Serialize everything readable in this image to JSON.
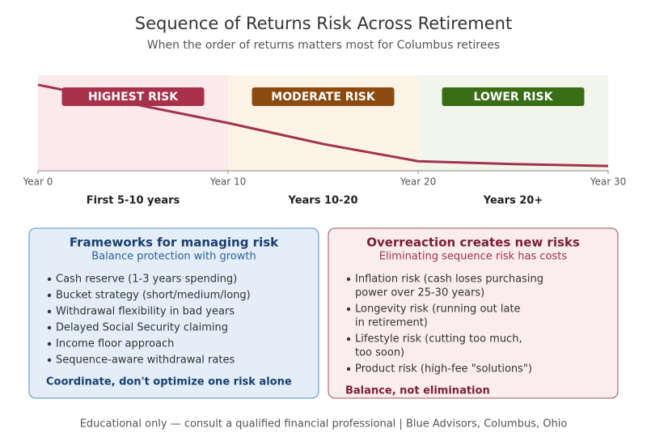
{
  "chart_data": {
    "type": "line",
    "title": "Sequence of Returns Risk Across Retirement",
    "subtitle": "When the order of returns matters most for Columbus retirees",
    "x": [
      0,
      5,
      10,
      15,
      20,
      25,
      30
    ],
    "values": [
      90,
      70,
      50,
      28,
      10,
      7,
      5
    ],
    "color": "#a0334d",
    "xlim": [
      0,
      30
    ],
    "ylim": [
      0,
      100
    ],
    "xticks": [
      {
        "value": 0,
        "label": "Year 0"
      },
      {
        "value": 10,
        "label": "Year 10"
      },
      {
        "value": 20,
        "label": "Year 20"
      },
      {
        "value": 30,
        "label": "Year 30"
      }
    ],
    "zones": [
      {
        "label": "HIGHEST RISK",
        "period": "First 5-10 years",
        "color": "#a8304a",
        "background": "#fbe9ec"
      },
      {
        "label": "MODERATE RISK",
        "period": "Years 10-20",
        "color": "#8a4a10",
        "background": "#fdf3e7"
      },
      {
        "label": "LOWER RISK",
        "period": "Years 20+",
        "color": "#3a6e16",
        "background": "#f2f5ec"
      }
    ]
  },
  "panels": [
    {
      "title": "Frameworks for managing risk",
      "subtitle": "Balance protection with growth",
      "bullets": [
        [
          "Cash reserve (1-3 years spending)"
        ],
        [
          "Bucket strategy (short/medium/long)"
        ],
        [
          "Withdrawal flexibility in bad years"
        ],
        [
          "Delayed Social Security claiming"
        ],
        [
          "Income floor approach"
        ],
        [
          "Sequence-aware withdrawal rates"
        ]
      ],
      "closing": "Coordinate, don't optimize one risk alone"
    },
    {
      "title": "Overreaction creates new risks",
      "subtitle": "Eliminating sequence risk has costs",
      "bullets": [
        [
          "Inflation risk (cash loses purchasing",
          "power over 25-30 years)"
        ],
        [
          "Longevity risk (running out late",
          "in retirement)"
        ],
        [
          "Lifestyle risk (cutting too much,",
          "too soon)"
        ],
        [
          "Product risk (high-fee \"solutions\")"
        ]
      ],
      "closing": "Balance, not elimination"
    }
  ],
  "footer": "Educational only — consult a qualified financial professional | Blue Advisors, Columbus, Ohio"
}
